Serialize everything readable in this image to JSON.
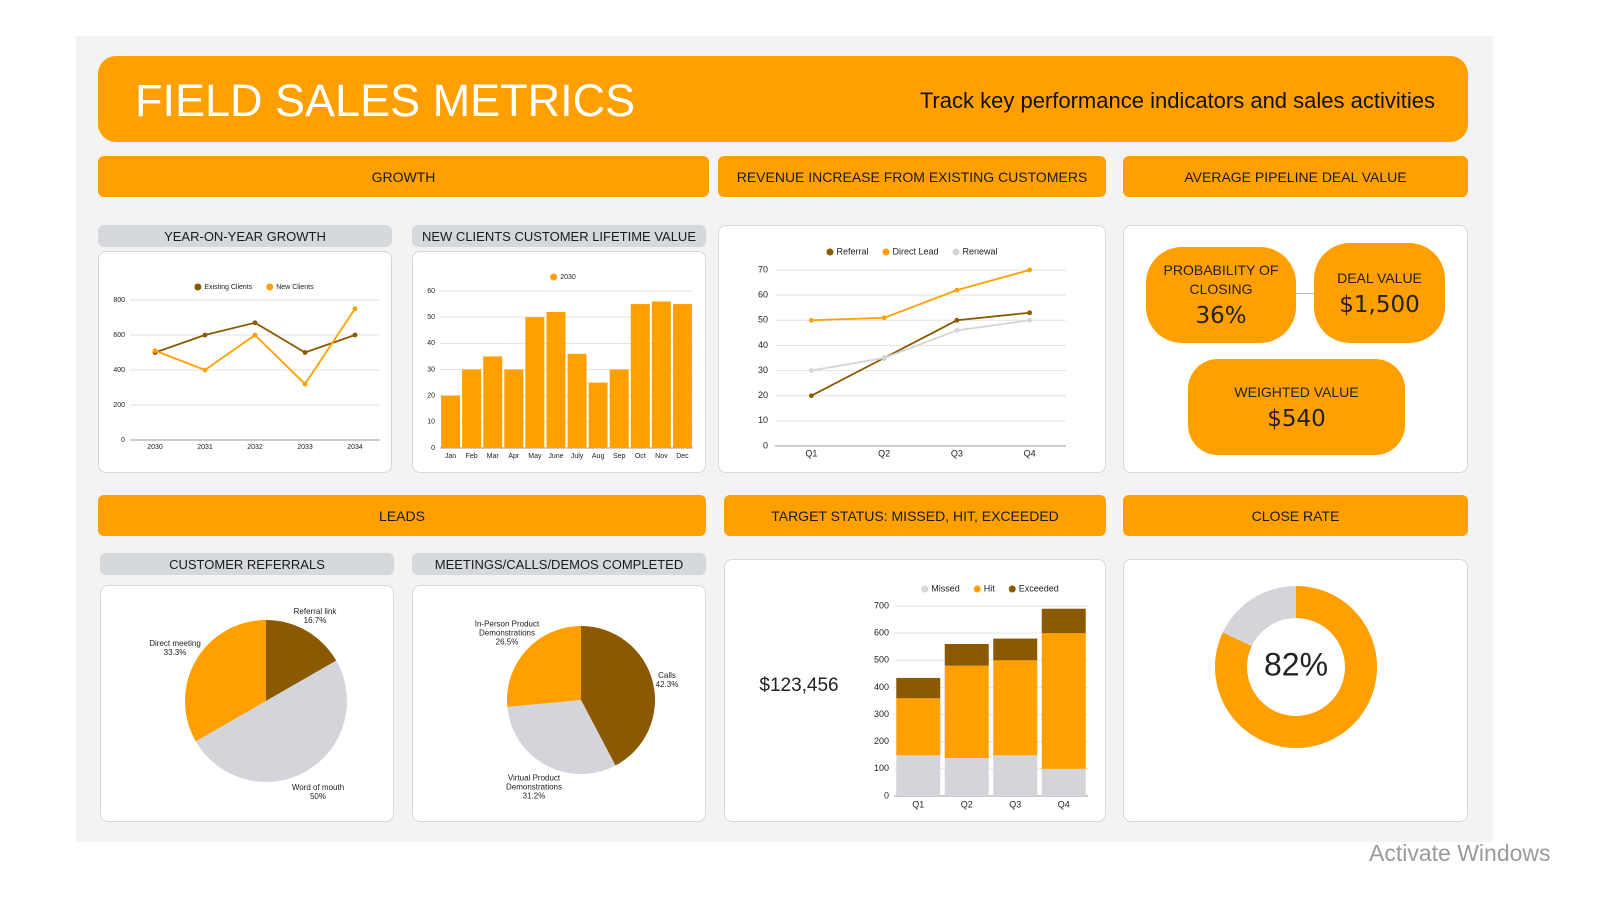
{
  "header": {
    "title": "FIELD SALES METRICS",
    "subtitle": "Track key performance indicators and sales activities"
  },
  "sections": [
    "GROWTH",
    "REVENUE INCREASE FROM EXISTING CUSTOMERS",
    "AVERAGE PIPELINE DEAL VALUE",
    "LEADS",
    "TARGET STATUS: MISSED, HIT, EXCEEDED",
    "CLOSE RATE"
  ],
  "kpis": [
    {
      "label": "PROBABILITY OF CLOSING",
      "value": "36%"
    },
    {
      "label": "DEAL VALUE",
      "value": "$1,500"
    },
    {
      "label": "WEIGHTED VALUE",
      "value": "$540"
    }
  ],
  "watermark": "Activate Windows",
  "chart_data": [
    {
      "type": "line",
      "title": "YEAR-ON-YEAR GROWTH",
      "categories": [
        "2030",
        "2031",
        "2032",
        "2033",
        "2034"
      ],
      "series": [
        {
          "name": "Existing Clients",
          "color": "#8B5A00",
          "values": [
            500,
            600,
            670,
            500,
            600
          ]
        },
        {
          "name": "New Clients",
          "color": "#FFA000",
          "values": [
            510,
            400,
            600,
            320,
            750
          ]
        }
      ],
      "ylim": [
        0,
        800
      ],
      "yticks": [
        0,
        200,
        400,
        600,
        800
      ],
      "grid": true,
      "legend": "top"
    },
    {
      "type": "bar",
      "title": "NEW CLIENTS CUSTOMER LIFETIME VALUE",
      "categories": [
        "Jan",
        "Feb",
        "Mar",
        "Apr",
        "May",
        "June",
        "July",
        "Aug",
        "Sep",
        "Oct",
        "Nov",
        "Dec"
      ],
      "series": [
        {
          "name": "2030",
          "color": "#FFA000",
          "values": [
            20,
            30,
            35,
            30,
            50,
            52,
            36,
            25,
            30,
            55,
            56,
            55
          ]
        }
      ],
      "ylim": [
        0,
        60
      ],
      "yticks": [
        0,
        10,
        20,
        30,
        40,
        50,
        60
      ],
      "grid": true,
      "legend": "top"
    },
    {
      "type": "line",
      "categories": [
        "Q1",
        "Q2",
        "Q3",
        "Q4"
      ],
      "series": [
        {
          "name": "Referral",
          "color": "#8B5A00",
          "values": [
            20,
            35,
            50,
            53
          ]
        },
        {
          "name": "Direct Lead",
          "color": "#FFA000",
          "values": [
            50,
            51,
            62,
            70
          ]
        },
        {
          "name": "Renewal",
          "color": "#D3D5DA",
          "values": [
            30,
            35,
            46,
            50
          ]
        }
      ],
      "ylim": [
        0,
        70
      ],
      "yticks": [
        0,
        10,
        20,
        30,
        40,
        50,
        60,
        70
      ],
      "grid": true,
      "legend": "top"
    },
    {
      "type": "pie",
      "title": "CUSTOMER REFERRALS",
      "categories": [
        "Referral link",
        "Word of mouth",
        "Direct meeting"
      ],
      "values": [
        16.7,
        50,
        33.3
      ],
      "value_labels": [
        "16.7%",
        "50%",
        "33.3%"
      ],
      "colors": [
        "#8B5A00",
        "#D3D5DA",
        "#FFA000"
      ]
    },
    {
      "type": "pie",
      "title": "MEETINGS/CALLS/DEMOS COMPLETED",
      "categories": [
        "Calls",
        "Virtual Product Demonstrations",
        "In-Person Product Demonstrations"
      ],
      "values": [
        42.3,
        31.2,
        26.5
      ],
      "value_labels": [
        "42.3%",
        "31.2%",
        "26.5%"
      ],
      "colors": [
        "#8B5A00",
        "#D3D5DA",
        "#FFA000"
      ]
    },
    {
      "type": "stacked_bar",
      "annotation": "$123,456",
      "categories": [
        "Q1",
        "Q2",
        "Q3",
        "Q4"
      ],
      "series": [
        {
          "name": "Missed",
          "color": "#D3D5DA",
          "values": [
            150,
            140,
            150,
            100
          ]
        },
        {
          "name": "Hit",
          "color": "#FFA000",
          "values": [
            210,
            340,
            350,
            500
          ]
        },
        {
          "name": "Exceeded",
          "color": "#8B5A00",
          "values": [
            75,
            80,
            80,
            90
          ]
        }
      ],
      "ylim": [
        0,
        700
      ],
      "yticks": [
        0,
        100,
        200,
        300,
        400,
        500,
        600,
        700
      ],
      "grid": true,
      "legend": "top"
    },
    {
      "type": "donut",
      "values": [
        82
      ],
      "value_labels": [
        "82%"
      ],
      "color": "#FFA000",
      "track_color": "#D3D5DA"
    }
  ]
}
